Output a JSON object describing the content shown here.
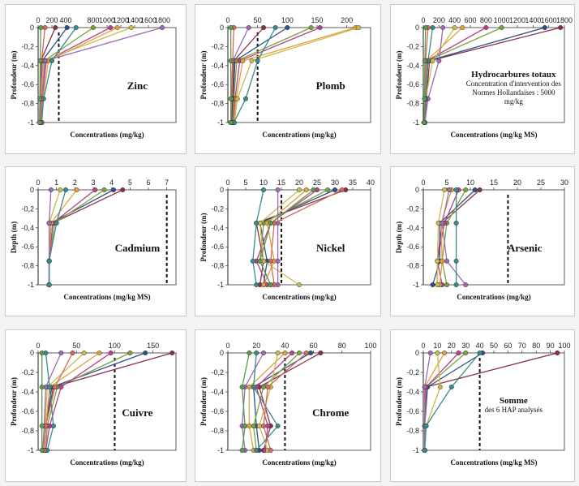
{
  "colors": {
    "bg": "#f3f3f1",
    "panel": "#ffffff",
    "series": [
      "#8a2f4a",
      "#2e4f8a",
      "#7aa23c",
      "#b9408a",
      "#e0a03a",
      "#c9b94e",
      "#9a6bb3",
      "#3a8a8a",
      "#d06a5a",
      "#5a9a4a",
      "#e6c0c8",
      "#c07a2a"
    ]
  },
  "chart_data": [
    {
      "type": "line",
      "title": "Zinc",
      "xlabel": "Concentrations (mg/kg)",
      "ylabel": "Profondeur (m)",
      "xticks": [
        "0",
        "400",
        "800",
        "1200",
        "1600",
        "2000"
      ],
      "xlim": [
        0,
        2000
      ],
      "xaxis_ticks": [
        0,
        200,
        400,
        800,
        1000,
        1200,
        1400,
        1600,
        1800
      ],
      "xtick_labels": [
        "0",
        "200",
        "400",
        "800",
        "1000",
        "1200",
        "1400",
        "1600",
        "1800"
      ],
      "ylim": [
        -1,
        0
      ],
      "yticks": [
        "0",
        "-0,2",
        "-0,4",
        "-0,6",
        "-0,8",
        "-1"
      ],
      "threshold": 300,
      "depths": [
        0,
        -0.35,
        -0.75,
        -1
      ],
      "series": [
        [
          250,
          40,
          30,
          25
        ],
        [
          420,
          60,
          40,
          30
        ],
        [
          800,
          90,
          50,
          40
        ],
        [
          1050,
          120,
          60,
          50
        ],
        [
          1150,
          150,
          70,
          55
        ],
        [
          1350,
          80,
          45,
          35
        ],
        [
          1800,
          100,
          55,
          40
        ],
        [
          550,
          200,
          80,
          50
        ],
        [
          100,
          50,
          40,
          35
        ],
        [
          40,
          30,
          25,
          20
        ]
      ]
    },
    {
      "type": "line",
      "title": "Plomb",
      "xlabel": "Concentrations (mg/kg)",
      "ylabel": "Profondeur (m)",
      "xlim": [
        0,
        240
      ],
      "xaxis_ticks": [
        0,
        50,
        100,
        150,
        200
      ],
      "xtick_labels": [
        "0",
        "50",
        "100",
        "150",
        "200"
      ],
      "ylim": [
        -1,
        0
      ],
      "yticks": [
        "0",
        "-0,2",
        "-0,4",
        "-0,6",
        "-0,8",
        "-1"
      ],
      "threshold": 50,
      "depths": [
        0,
        -0.35,
        -0.75,
        -1
      ],
      "series": [
        [
          60,
          10,
          8,
          6
        ],
        [
          100,
          12,
          9,
          7
        ],
        [
          140,
          15,
          10,
          8
        ],
        [
          155,
          20,
          12,
          9
        ],
        [
          215,
          25,
          14,
          10
        ],
        [
          220,
          40,
          16,
          11
        ],
        [
          35,
          8,
          6,
          5
        ],
        [
          80,
          50,
          30,
          10
        ],
        [
          10,
          8,
          6,
          5
        ],
        [
          5,
          5,
          5,
          5
        ]
      ]
    },
    {
      "type": "line",
      "title": "Hydrocarbures totaux",
      "annotation": [
        "Hydrocarbures totaux",
        "Concentration d'intervention des",
        "Normes Hollandaises : 5000 mg/kg"
      ],
      "xlabel": "Concentrations (mg/kg MS)",
      "ylabel": "Profondeur (m)",
      "xlim": [
        0,
        1800
      ],
      "xaxis_ticks": [
        0,
        200,
        400,
        600,
        800,
        1000,
        1200,
        1400,
        1600,
        1800
      ],
      "xtick_labels": [
        "0",
        "200",
        "400",
        "600",
        "800",
        "1000",
        "1200",
        "1400",
        "1600",
        "1800"
      ],
      "ylim": [
        -1,
        0
      ],
      "yticks": [
        "0",
        "-0,2",
        "-0,4",
        "-0,6",
        "-0,8",
        "-1"
      ],
      "threshold": null,
      "depths": [
        0,
        -0.35,
        -0.75,
        -1
      ],
      "series": [
        [
          1750,
          80,
          40,
          20
        ],
        [
          1550,
          60,
          30,
          15
        ],
        [
          1000,
          50,
          25,
          12
        ],
        [
          800,
          45,
          20,
          10
        ],
        [
          500,
          40,
          20,
          10
        ],
        [
          400,
          120,
          30,
          15
        ],
        [
          250,
          200,
          60,
          20
        ],
        [
          120,
          60,
          30,
          15
        ],
        [
          60,
          30,
          20,
          10
        ],
        [
          30,
          20,
          15,
          10
        ]
      ]
    },
    {
      "type": "line",
      "title": "Cadmium",
      "xlabel": "Concentrations (mg/kg MS)",
      "ylabel": "Depth (m)",
      "xlim": [
        0,
        7.5
      ],
      "xaxis_ticks": [
        0,
        1,
        2,
        3,
        4,
        5,
        6,
        7
      ],
      "xtick_labels": [
        "0",
        "1",
        "2",
        "3",
        "4",
        "5",
        "6",
        "7"
      ],
      "ylim": [
        -1,
        0
      ],
      "yticks": [
        "0",
        "-0,2",
        "-0,4",
        "-0,6",
        "-0,8",
        "-1"
      ],
      "threshold": 7,
      "depths": [
        0,
        -0.35,
        -0.75,
        -1
      ],
      "series": [
        [
          4.6,
          0.8,
          0.6,
          0.6
        ],
        [
          4.1,
          0.7,
          0.6,
          0.6
        ],
        [
          3.6,
          0.9,
          0.6,
          0.6
        ],
        [
          3.1,
          0.8,
          0.6,
          0.6
        ],
        [
          2.1,
          0.7,
          0.6,
          0.6
        ],
        [
          1.2,
          0.6,
          0.6,
          0.6
        ],
        [
          0.7,
          0.6,
          0.6,
          0.6
        ],
        [
          1.5,
          1.0,
          0.6,
          0.6
        ]
      ]
    },
    {
      "type": "line",
      "title": "Nickel",
      "xlabel": "Concentrations (mg/kg)",
      "ylabel": "Profondeur (m)",
      "xlim": [
        0,
        40
      ],
      "xaxis_ticks": [
        0,
        5,
        10,
        15,
        20,
        25,
        30,
        35,
        40
      ],
      "xtick_labels": [
        "0",
        "5",
        "10",
        "15",
        "20",
        "25",
        "30",
        "35",
        "40"
      ],
      "ylim": [
        -1,
        0
      ],
      "yticks": [
        "0",
        "-0,2",
        "-0,4",
        "-0,6",
        "-0,8",
        "-1"
      ],
      "threshold": 15,
      "depths": [
        0,
        -0.35,
        -0.75,
        -1
      ],
      "series": [
        [
          33,
          8,
          10,
          9
        ],
        [
          30,
          9,
          11,
          10
        ],
        [
          28,
          10,
          9,
          12
        ],
        [
          25,
          12,
          8,
          11
        ],
        [
          22,
          11,
          13,
          10
        ],
        [
          20,
          9,
          10,
          20
        ],
        [
          14,
          14,
          14,
          14
        ],
        [
          10,
          8,
          7,
          8
        ],
        [
          32,
          13,
          12,
          13
        ],
        [
          24,
          12,
          9,
          12
        ]
      ]
    },
    {
      "type": "line",
      "title": "Arsenic",
      "xlabel": "Concentrations (mg/kg)",
      "ylabel": "Depth (m)",
      "xlim": [
        0,
        30
      ],
      "xaxis_ticks": [
        0,
        5,
        10,
        15,
        20,
        25,
        30
      ],
      "xtick_labels": [
        "0",
        "5",
        "10",
        "15",
        "20",
        "25",
        "30"
      ],
      "ylim": [
        -1,
        0
      ],
      "yticks": [
        "0",
        "-0,2",
        "-0,4",
        "-0,6",
        "-0,8",
        "-1"
      ],
      "threshold": 18,
      "depths": [
        0,
        -0.35,
        -0.75,
        -1
      ],
      "series": [
        [
          12,
          4,
          3,
          3
        ],
        [
          11,
          3.5,
          3.5,
          2
        ],
        [
          9,
          5,
          4,
          5
        ],
        [
          7.5,
          4.5,
          3,
          4
        ],
        [
          6,
          3.8,
          4,
          3.5
        ],
        [
          4.5,
          3.2,
          3,
          3
        ],
        [
          5.5,
          4,
          5,
          9
        ],
        [
          7,
          7,
          7,
          7
        ]
      ]
    },
    {
      "type": "line",
      "title": "Cuivre",
      "xlabel": "Concentrations (mg/kg)",
      "ylabel": "Profondeur (m)",
      "xlim": [
        0,
        180
      ],
      "xaxis_ticks": [
        0,
        50,
        100,
        150
      ],
      "xtick_labels": [
        "0",
        "50",
        "100",
        "150"
      ],
      "ylim": [
        -1,
        0
      ],
      "yticks": [
        "0",
        "-0,2",
        "-0,4",
        "-0,6",
        "-0,8",
        "-1"
      ],
      "threshold": 100,
      "depths": [
        0,
        -0.35,
        -0.75,
        -1
      ],
      "series": [
        [
          175,
          20,
          10,
          8
        ],
        [
          140,
          18,
          9,
          7
        ],
        [
          120,
          25,
          12,
          10
        ],
        [
          95,
          30,
          15,
          10
        ],
        [
          80,
          15,
          10,
          8
        ],
        [
          60,
          12,
          9,
          7
        ],
        [
          30,
          10,
          8,
          6
        ],
        [
          10,
          15,
          20,
          12
        ],
        [
          45,
          22,
          10,
          8
        ],
        [
          5,
          5,
          5,
          5
        ]
      ]
    },
    {
      "type": "line",
      "title": "Chrome",
      "xlabel": "Concentrations (mg/kg)",
      "ylabel": "Profondeur (m)",
      "xlim": [
        0,
        100
      ],
      "xaxis_ticks": [
        0,
        20,
        40,
        60,
        80,
        100
      ],
      "xtick_labels": [
        "0",
        "20",
        "40",
        "60",
        "80",
        "100"
      ],
      "ylim": [
        -1,
        0
      ],
      "yticks": [
        "0",
        "-0,2",
        "-0,4",
        "-0,6",
        "-0,8",
        "-1"
      ],
      "threshold": 40,
      "depths": [
        0,
        -0.35,
        -0.75,
        -1
      ],
      "series": [
        [
          65,
          22,
          30,
          25
        ],
        [
          58,
          18,
          20,
          22
        ],
        [
          50,
          25,
          18,
          20
        ],
        [
          45,
          20,
          28,
          26
        ],
        [
          40,
          15,
          15,
          18
        ],
        [
          35,
          30,
          22,
          28
        ],
        [
          25,
          12,
          10,
          12
        ],
        [
          20,
          18,
          35,
          20
        ],
        [
          55,
          28,
          25,
          30
        ],
        [
          15,
          10,
          12,
          10
        ]
      ]
    },
    {
      "type": "line",
      "title": "Somme des 6 HAP analysés",
      "annotation": [
        "Somme",
        "des 6 HAP analysés"
      ],
      "xlabel": "Concentrations (mg/kg MS)",
      "ylabel": "Profondeur (m)",
      "xlim": [
        0,
        100
      ],
      "xaxis_ticks": [
        0,
        10,
        20,
        30,
        40,
        50,
        60,
        70,
        80,
        90,
        100
      ],
      "xtick_labels": [
        "0",
        "10",
        "20",
        "30",
        "40",
        "50",
        "60",
        "70",
        "80",
        "90",
        "100"
      ],
      "ylim": [
        -1,
        0
      ],
      "yticks": [
        "0",
        "-0,2",
        "-0,4",
        "-0,6",
        "-0,8",
        "-1"
      ],
      "threshold": 40,
      "depths": [
        0,
        -0.35,
        -0.75,
        -1
      ],
      "series": [
        [
          95,
          2,
          1,
          1
        ],
        [
          42,
          3,
          1,
          1
        ],
        [
          30,
          2,
          1,
          1
        ],
        [
          25,
          2,
          1,
          1
        ],
        [
          15,
          1,
          1,
          1
        ],
        [
          10,
          12,
          2,
          1
        ],
        [
          5,
          1,
          1,
          1
        ],
        [
          40,
          20,
          2,
          1
        ]
      ]
    }
  ]
}
